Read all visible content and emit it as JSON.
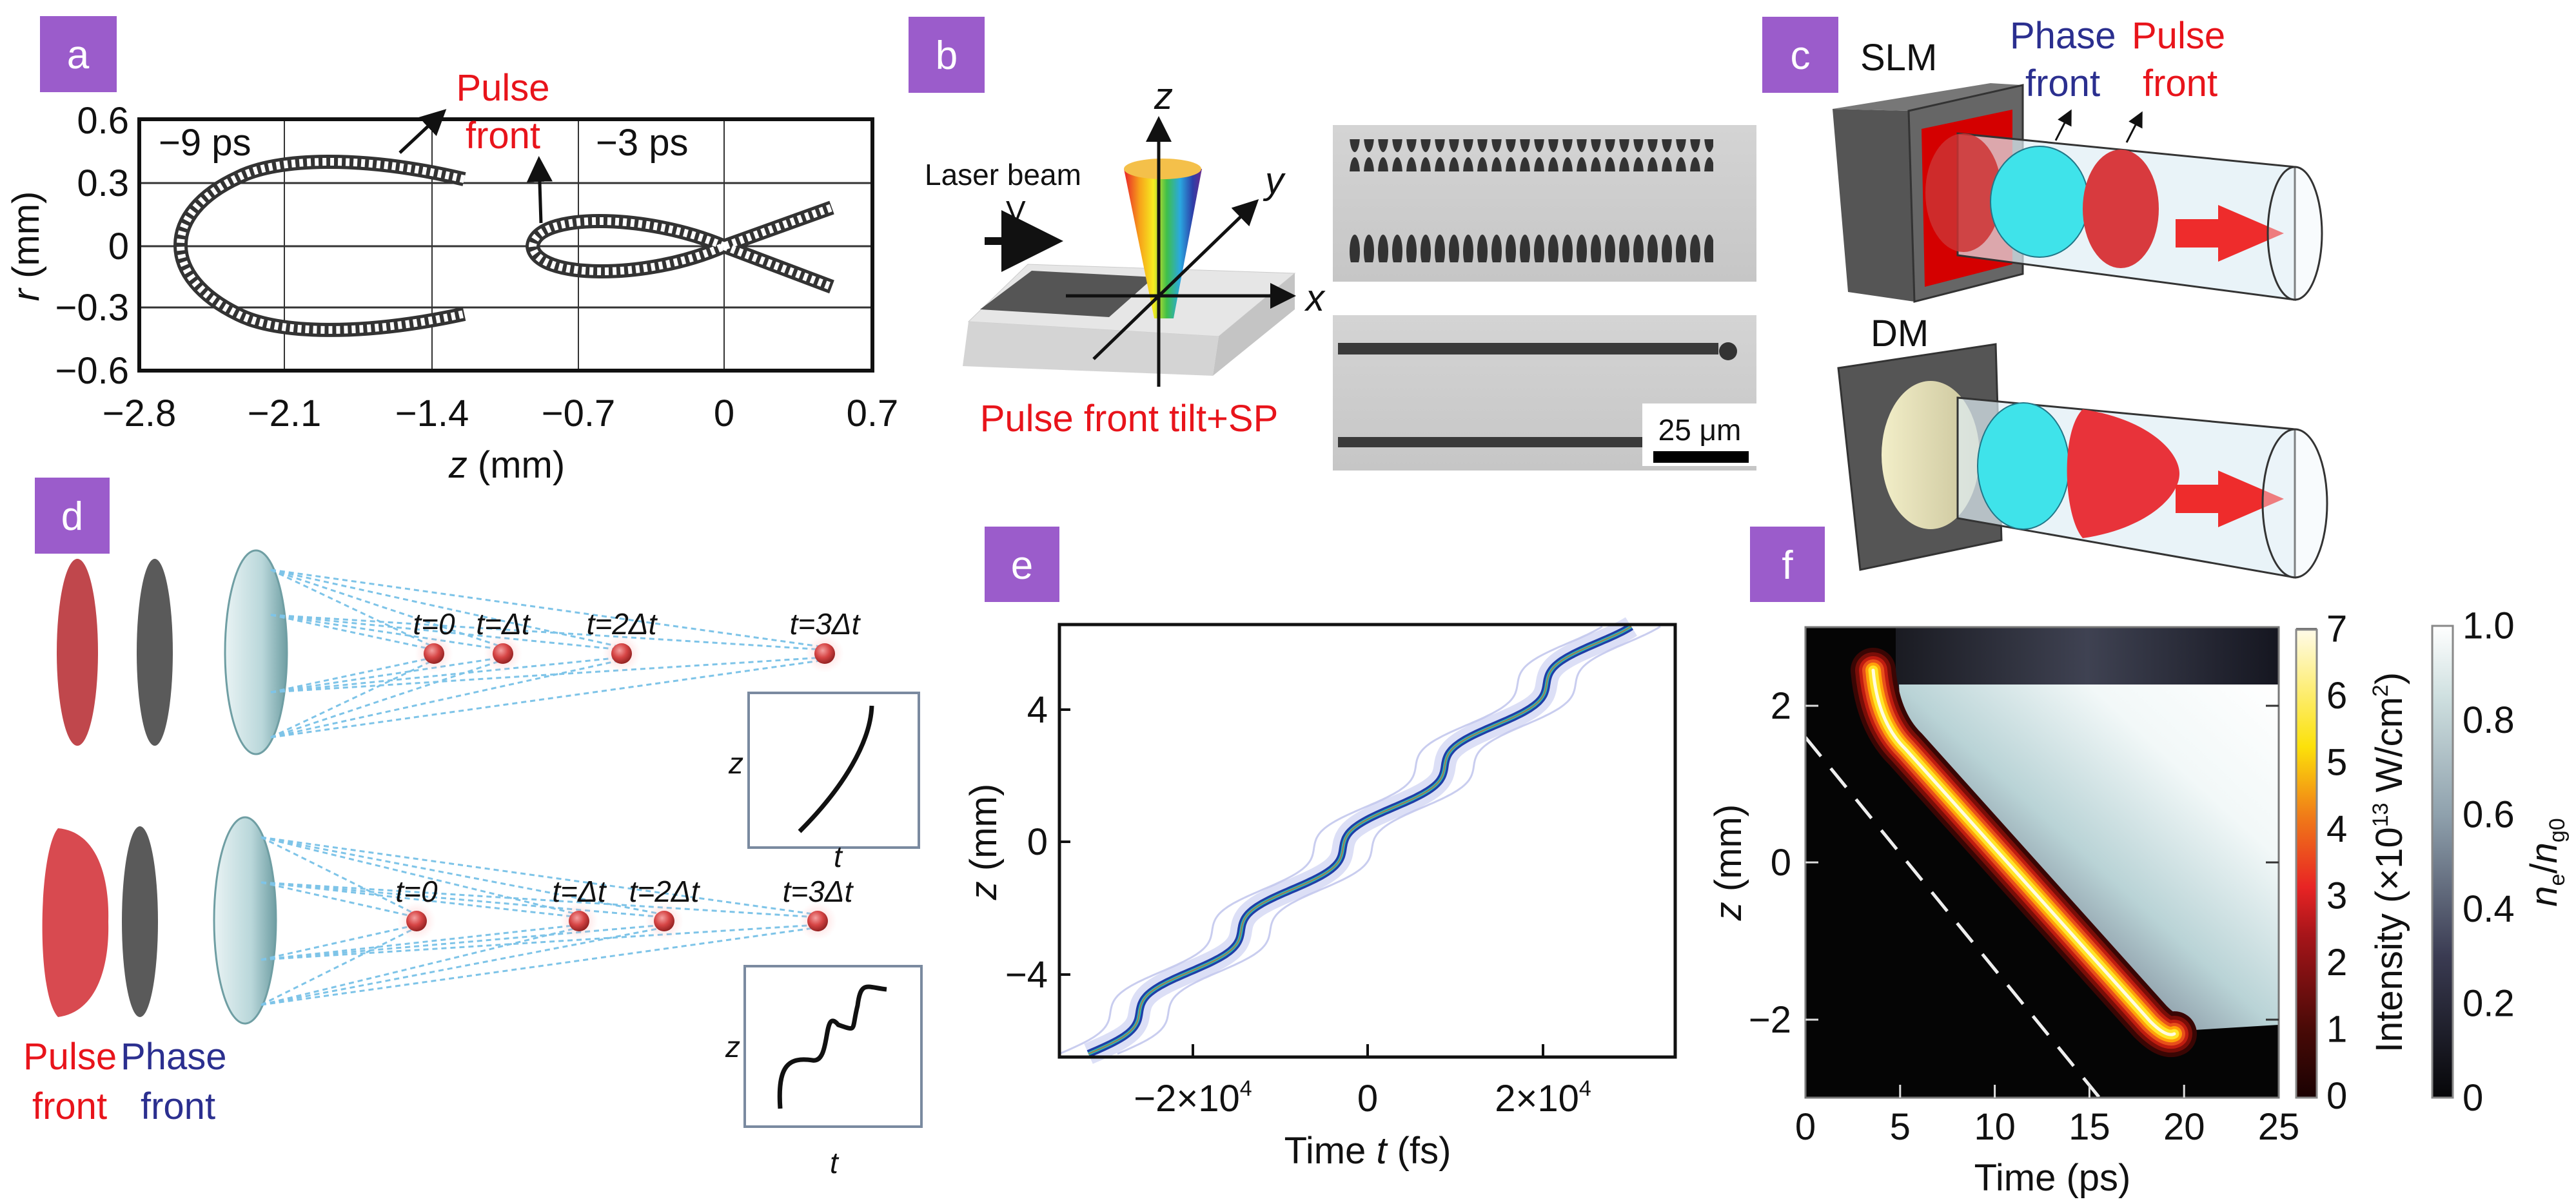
{
  "figure": {
    "a": {
      "label": "a",
      "annotation_line1": "Pulse",
      "annotation_line2": "front",
      "time_left": "−9 ps",
      "time_right": "−3 ps",
      "x_var": "z",
      "x_unit": " (mm)",
      "y_var": "r",
      "y_unit": " (mm)",
      "x_ticks": [
        "−2.8",
        "−2.1",
        "−1.4",
        "−0.7",
        "0",
        "0.7"
      ],
      "y_ticks": [
        "0.6",
        "0.3",
        "0",
        "−0.3",
        "−0.6"
      ]
    },
    "b": {
      "label": "b",
      "laser_beam": "Laser beam",
      "velocity": "V",
      "axis_z": "z",
      "axis_y": "y",
      "axis_x": "x",
      "caption": "Pulse front tilt+SP",
      "scale_bar": "25 μm"
    },
    "c": {
      "label": "c",
      "slm": "SLM",
      "dm": "DM",
      "phase": "Phase",
      "pulse": "Pulse",
      "front": "front"
    },
    "d": {
      "label": "d",
      "top_times": [
        "t=0",
        "t=Δt",
        "t=2Δt",
        "t=3Δt"
      ],
      "bottom_times": [
        "t=0",
        "t=Δt",
        "t=2Δt",
        "t=3Δt"
      ],
      "inset_y": "z",
      "inset_x": "t",
      "pulse": "Pulse",
      "phase": "Phase",
      "front": "front"
    },
    "e": {
      "label": "e",
      "x_title_pre": "Time ",
      "x_title_var": "t",
      "x_title_unit": " (fs)",
      "y_var": "z",
      "y_unit": " (mm)",
      "x_ticks": [
        {
          "base": "−2×10",
          "exp": "4"
        },
        {
          "base": "0",
          "exp": ""
        },
        {
          "base": "2×10",
          "exp": "4"
        }
      ],
      "y_ticks": [
        "4",
        "0",
        "−4"
      ]
    },
    "f": {
      "label": "f",
      "x_title": "Time (ps)",
      "y_var": "z",
      "y_unit": " (mm)",
      "x_ticks": [
        "0",
        "5",
        "10",
        "15",
        "20",
        "25"
      ],
      "y_ticks": [
        "2",
        "0",
        "−2"
      ],
      "intensity_ticks": [
        "0",
        "1",
        "2",
        "3",
        "4",
        "5",
        "6",
        "7"
      ],
      "intensity_label_pre": "Intensity (×10",
      "intensity_label_exp": "13",
      "intensity_label_post": " W/cm",
      "intensity_label_exp2": "2",
      "intensity_label_close": ")",
      "density_ticks": [
        "0",
        "0.2",
        "0.4",
        "0.6",
        "0.8",
        "1.0"
      ],
      "density_label_n": "n",
      "density_label_sub1": "e",
      "density_label_slash": "/",
      "density_label_n2": "n",
      "density_label_sub2": "g0"
    }
  },
  "colors": {
    "panel_label_bg": "#9b5ccb",
    "annotation_red": "#e8141b",
    "annotation_blue": "#2b2f8f",
    "cyan_disk": "#3fe3ea",
    "red_disk": "#d83a3e"
  }
}
